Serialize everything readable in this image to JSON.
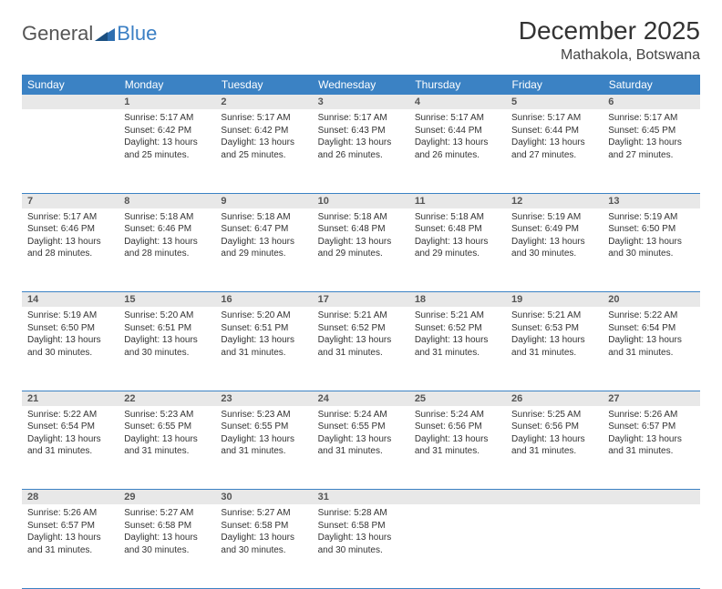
{
  "logo": {
    "text1": "General",
    "text2": "Blue",
    "icon_color": "#2f6fb0"
  },
  "title": "December 2025",
  "location": "Mathakola, Botswana",
  "colors": {
    "header_bg": "#3b82c4",
    "header_text": "#ffffff",
    "daynum_bg": "#e8e8e8",
    "border": "#3b82c4"
  },
  "weekdays": [
    "Sunday",
    "Monday",
    "Tuesday",
    "Wednesday",
    "Thursday",
    "Friday",
    "Saturday"
  ],
  "weeks": [
    {
      "nums": [
        "",
        "1",
        "2",
        "3",
        "4",
        "5",
        "6"
      ],
      "cells": [
        null,
        {
          "sr": "5:17 AM",
          "ss": "6:42 PM",
          "dl": "13 hours and 25 minutes."
        },
        {
          "sr": "5:17 AM",
          "ss": "6:42 PM",
          "dl": "13 hours and 25 minutes."
        },
        {
          "sr": "5:17 AM",
          "ss": "6:43 PM",
          "dl": "13 hours and 26 minutes."
        },
        {
          "sr": "5:17 AM",
          "ss": "6:44 PM",
          "dl": "13 hours and 26 minutes."
        },
        {
          "sr": "5:17 AM",
          "ss": "6:44 PM",
          "dl": "13 hours and 27 minutes."
        },
        {
          "sr": "5:17 AM",
          "ss": "6:45 PM",
          "dl": "13 hours and 27 minutes."
        }
      ]
    },
    {
      "nums": [
        "7",
        "8",
        "9",
        "10",
        "11",
        "12",
        "13"
      ],
      "cells": [
        {
          "sr": "5:17 AM",
          "ss": "6:46 PM",
          "dl": "13 hours and 28 minutes."
        },
        {
          "sr": "5:18 AM",
          "ss": "6:46 PM",
          "dl": "13 hours and 28 minutes."
        },
        {
          "sr": "5:18 AM",
          "ss": "6:47 PM",
          "dl": "13 hours and 29 minutes."
        },
        {
          "sr": "5:18 AM",
          "ss": "6:48 PM",
          "dl": "13 hours and 29 minutes."
        },
        {
          "sr": "5:18 AM",
          "ss": "6:48 PM",
          "dl": "13 hours and 29 minutes."
        },
        {
          "sr": "5:19 AM",
          "ss": "6:49 PM",
          "dl": "13 hours and 30 minutes."
        },
        {
          "sr": "5:19 AM",
          "ss": "6:50 PM",
          "dl": "13 hours and 30 minutes."
        }
      ]
    },
    {
      "nums": [
        "14",
        "15",
        "16",
        "17",
        "18",
        "19",
        "20"
      ],
      "cells": [
        {
          "sr": "5:19 AM",
          "ss": "6:50 PM",
          "dl": "13 hours and 30 minutes."
        },
        {
          "sr": "5:20 AM",
          "ss": "6:51 PM",
          "dl": "13 hours and 30 minutes."
        },
        {
          "sr": "5:20 AM",
          "ss": "6:51 PM",
          "dl": "13 hours and 31 minutes."
        },
        {
          "sr": "5:21 AM",
          "ss": "6:52 PM",
          "dl": "13 hours and 31 minutes."
        },
        {
          "sr": "5:21 AM",
          "ss": "6:52 PM",
          "dl": "13 hours and 31 minutes."
        },
        {
          "sr": "5:21 AM",
          "ss": "6:53 PM",
          "dl": "13 hours and 31 minutes."
        },
        {
          "sr": "5:22 AM",
          "ss": "6:54 PM",
          "dl": "13 hours and 31 minutes."
        }
      ]
    },
    {
      "nums": [
        "21",
        "22",
        "23",
        "24",
        "25",
        "26",
        "27"
      ],
      "cells": [
        {
          "sr": "5:22 AM",
          "ss": "6:54 PM",
          "dl": "13 hours and 31 minutes."
        },
        {
          "sr": "5:23 AM",
          "ss": "6:55 PM",
          "dl": "13 hours and 31 minutes."
        },
        {
          "sr": "5:23 AM",
          "ss": "6:55 PM",
          "dl": "13 hours and 31 minutes."
        },
        {
          "sr": "5:24 AM",
          "ss": "6:55 PM",
          "dl": "13 hours and 31 minutes."
        },
        {
          "sr": "5:24 AM",
          "ss": "6:56 PM",
          "dl": "13 hours and 31 minutes."
        },
        {
          "sr": "5:25 AM",
          "ss": "6:56 PM",
          "dl": "13 hours and 31 minutes."
        },
        {
          "sr": "5:26 AM",
          "ss": "6:57 PM",
          "dl": "13 hours and 31 minutes."
        }
      ]
    },
    {
      "nums": [
        "28",
        "29",
        "30",
        "31",
        "",
        "",
        ""
      ],
      "cells": [
        {
          "sr": "5:26 AM",
          "ss": "6:57 PM",
          "dl": "13 hours and 31 minutes."
        },
        {
          "sr": "5:27 AM",
          "ss": "6:58 PM",
          "dl": "13 hours and 30 minutes."
        },
        {
          "sr": "5:27 AM",
          "ss": "6:58 PM",
          "dl": "13 hours and 30 minutes."
        },
        {
          "sr": "5:28 AM",
          "ss": "6:58 PM",
          "dl": "13 hours and 30 minutes."
        },
        null,
        null,
        null
      ]
    }
  ],
  "labels": {
    "sunrise": "Sunrise:",
    "sunset": "Sunset:",
    "daylight": "Daylight:"
  }
}
